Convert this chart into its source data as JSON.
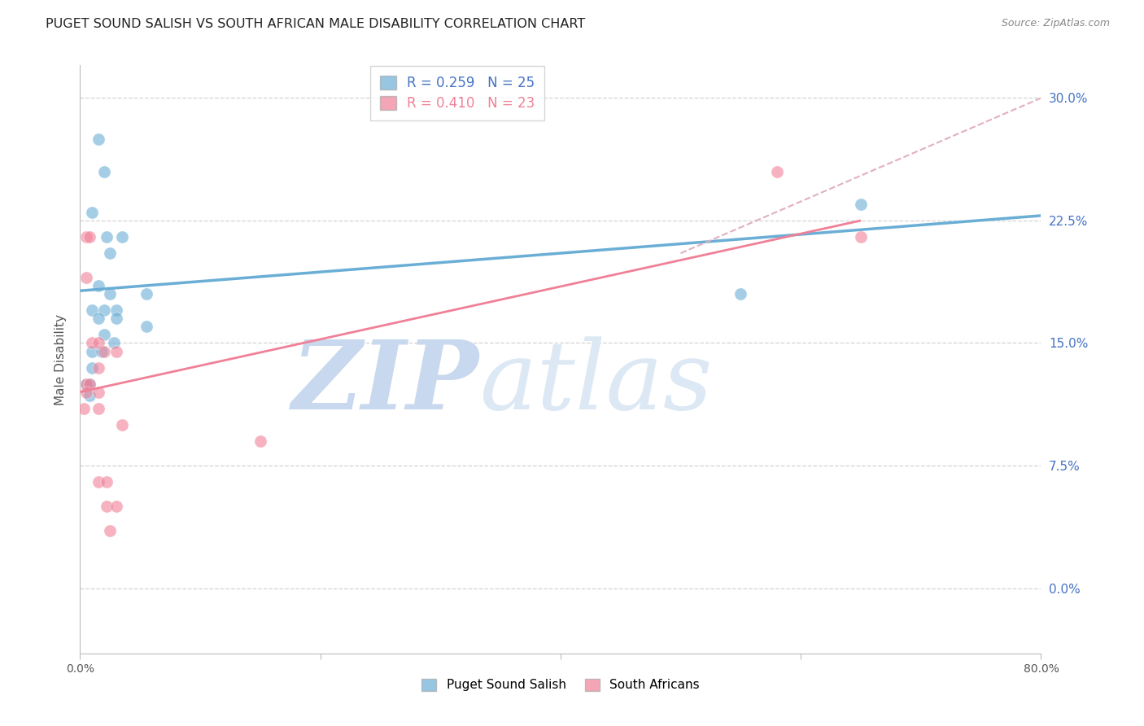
{
  "title": "PUGET SOUND SALISH VS SOUTH AFRICAN MALE DISABILITY CORRELATION CHART",
  "source": "Source: ZipAtlas.com",
  "ylabel": "Male Disability",
  "ytick_values": [
    0.0,
    7.5,
    15.0,
    22.5,
    30.0
  ],
  "xlim": [
    0.0,
    80.0
  ],
  "ylim": [
    -4.0,
    32.0
  ],
  "watermark_zip": "ZIP",
  "watermark_atlas": "atlas",
  "blue_points": [
    [
      1.5,
      27.5
    ],
    [
      2.0,
      25.5
    ],
    [
      1.0,
      23.0
    ],
    [
      2.2,
      21.5
    ],
    [
      3.5,
      21.5
    ],
    [
      2.5,
      20.5
    ],
    [
      1.5,
      18.5
    ],
    [
      2.5,
      18.0
    ],
    [
      5.5,
      18.0
    ],
    [
      1.0,
      17.0
    ],
    [
      2.0,
      17.0
    ],
    [
      3.0,
      17.0
    ],
    [
      1.5,
      16.5
    ],
    [
      3.0,
      16.5
    ],
    [
      5.5,
      16.0
    ],
    [
      2.0,
      15.5
    ],
    [
      2.8,
      15.0
    ],
    [
      1.0,
      14.5
    ],
    [
      1.8,
      14.5
    ],
    [
      1.0,
      13.5
    ],
    [
      0.5,
      12.5
    ],
    [
      0.8,
      12.5
    ],
    [
      0.8,
      11.8
    ],
    [
      55.0,
      18.0
    ],
    [
      65.0,
      23.5
    ]
  ],
  "pink_points": [
    [
      0.5,
      21.5
    ],
    [
      0.8,
      21.5
    ],
    [
      0.5,
      19.0
    ],
    [
      1.0,
      15.0
    ],
    [
      1.5,
      15.0
    ],
    [
      2.0,
      14.5
    ],
    [
      3.0,
      14.5
    ],
    [
      1.5,
      13.5
    ],
    [
      0.5,
      12.5
    ],
    [
      0.8,
      12.5
    ],
    [
      0.5,
      12.0
    ],
    [
      1.5,
      12.0
    ],
    [
      0.3,
      11.0
    ],
    [
      1.5,
      11.0
    ],
    [
      3.5,
      10.0
    ],
    [
      1.5,
      6.5
    ],
    [
      2.2,
      6.5
    ],
    [
      2.2,
      5.0
    ],
    [
      3.0,
      5.0
    ],
    [
      2.5,
      3.5
    ],
    [
      58.0,
      25.5
    ],
    [
      65.0,
      21.5
    ],
    [
      15.0,
      9.0
    ]
  ],
  "blue_line": {
    "x0": 0.0,
    "y0": 18.2,
    "x1": 80.0,
    "y1": 22.8
  },
  "pink_line": {
    "x0": 0.0,
    "y0": 12.0,
    "x1": 65.0,
    "y1": 22.5
  },
  "pink_dashed_line": {
    "x0": 50.0,
    "y0": 20.5,
    "x1": 80.0,
    "y1": 30.0
  },
  "blue_color": "#6aaed6",
  "pink_color": "#f08097",
  "pink_dashed_color": "#e0b0c0",
  "bg_color": "#ffffff",
  "grid_color": "#c8c8c8",
  "axis_label_color": "#4472c4",
  "title_color": "#222222",
  "watermark_color": "#ddeeff",
  "marker_size": 120,
  "blue_legend_label": "R = 0.259   N = 25",
  "pink_legend_label": "R = 0.410   N = 23",
  "bottom_legend_blue": "Puget Sound Salish",
  "bottom_legend_pink": "South Africans"
}
